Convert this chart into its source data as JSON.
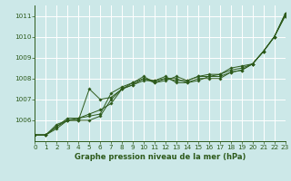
{
  "xlabel": "Graphe pression niveau de la mer (hPa)",
  "xlim": [
    0,
    23
  ],
  "ylim": [
    1005.0,
    1011.5
  ],
  "yticks": [
    1006,
    1007,
    1008,
    1009,
    1010,
    1011
  ],
  "xticks": [
    0,
    1,
    2,
    3,
    4,
    5,
    6,
    7,
    8,
    9,
    10,
    11,
    12,
    13,
    14,
    15,
    16,
    17,
    18,
    19,
    20,
    21,
    22,
    23
  ],
  "bg_color": "#cce8e8",
  "grid_color": "#ffffff",
  "line_color": "#2d5a1b",
  "series": [
    [
      1005.3,
      1005.3,
      1005.6,
      1006.0,
      1006.0,
      1006.0,
      1006.2,
      1007.0,
      1007.5,
      1007.7,
      1008.0,
      1007.8,
      1008.0,
      1008.0,
      1007.8,
      1008.0,
      1008.0,
      1008.0,
      1008.3,
      1008.4,
      1008.7,
      1009.3,
      1010.0,
      1011.1
    ],
    [
      1005.3,
      1005.3,
      1005.8,
      1006.0,
      1006.1,
      1006.3,
      1006.5,
      1006.8,
      1007.5,
      1007.8,
      1008.0,
      1007.9,
      1008.1,
      1007.8,
      1007.8,
      1007.9,
      1008.1,
      1008.1,
      1008.3,
      1008.4,
      1008.7,
      1009.3,
      1010.0,
      1011.1
    ],
    [
      1005.3,
      1005.3,
      1005.7,
      1006.0,
      1006.0,
      1007.5,
      1007.0,
      1007.1,
      1007.5,
      1007.7,
      1007.9,
      1007.9,
      1008.0,
      1007.9,
      1007.9,
      1008.1,
      1008.1,
      1008.2,
      1008.4,
      1008.5,
      1008.7,
      1009.3,
      1010.0,
      1011.0
    ],
    [
      1005.3,
      1005.3,
      1005.7,
      1006.1,
      1006.1,
      1006.2,
      1006.3,
      1007.3,
      1007.6,
      1007.8,
      1008.1,
      1007.8,
      1007.9,
      1008.1,
      1007.9,
      1008.1,
      1008.2,
      1008.2,
      1008.5,
      1008.6,
      1008.7,
      1009.3,
      1010.0,
      1011.0
    ]
  ],
  "xlabel_fontsize": 6.0,
  "tick_fontsize": 5.2,
  "label_color": "#2d5a1b"
}
